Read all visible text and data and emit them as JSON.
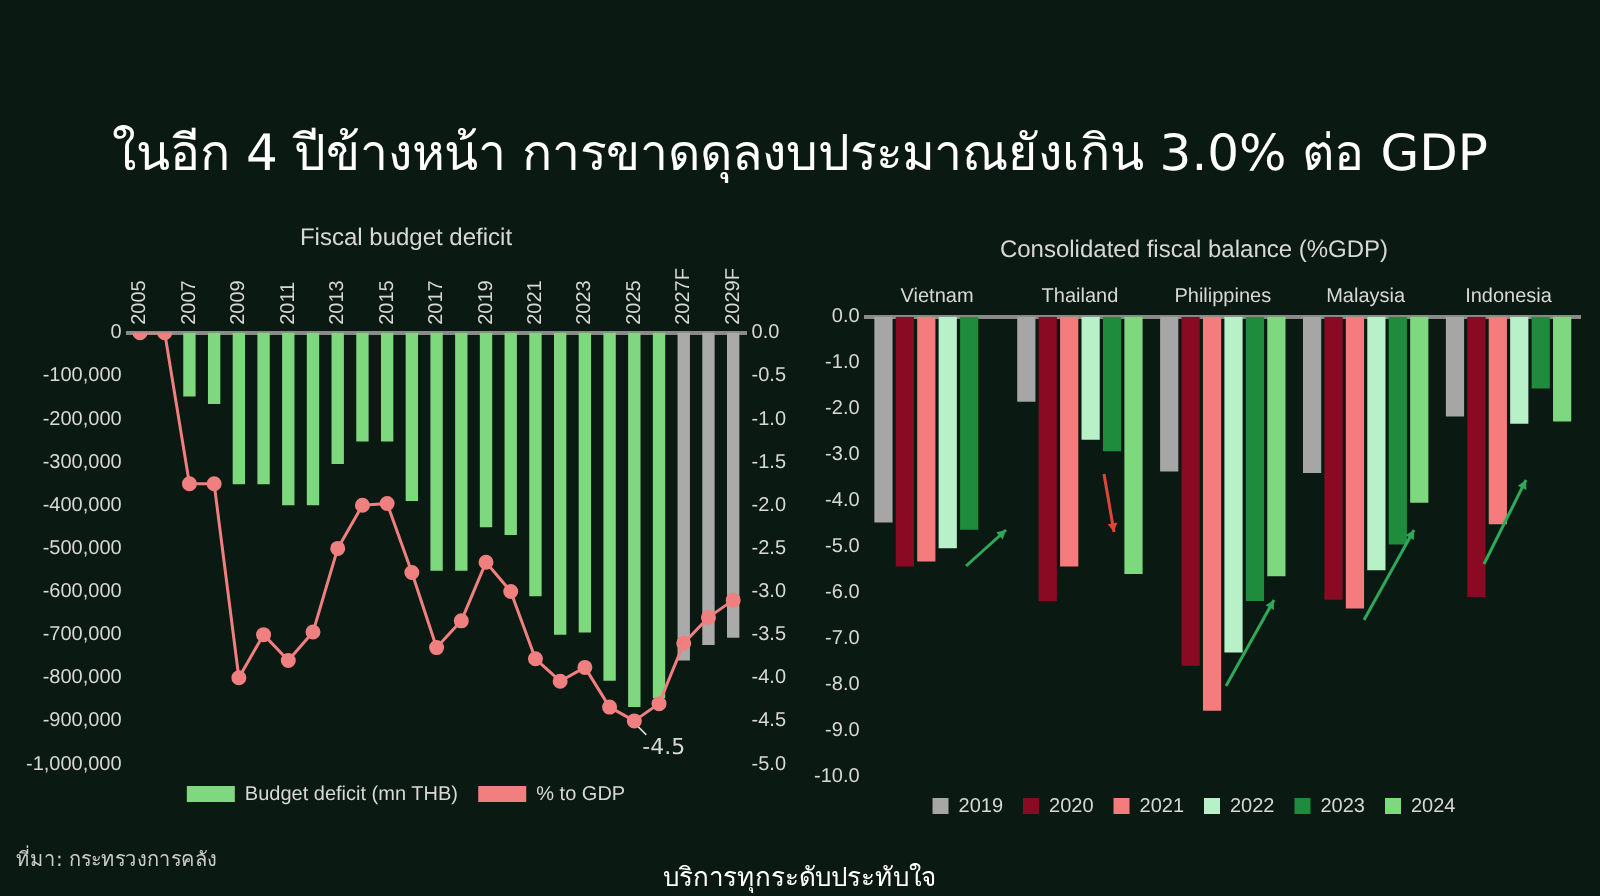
{
  "chart_data": [
    {
      "type": "other",
      "title": "ในอีก 4 ปีข้างหน้า การขาดดุลงบประมาณยังเกิน 3.0% ต่อ GDP",
      "annotations": [
        "ที่มา: กระทรวงการคลัง",
        "บริการทุกระดับประทับใจ"
      ]
    },
    {
      "type": "bar",
      "title": "Fiscal budget deficit",
      "categories": [
        "2005",
        null,
        "2007",
        null,
        "2009",
        null,
        "2011",
        null,
        "2013",
        null,
        "2015",
        null,
        "2017",
        null,
        "2019",
        null,
        "2021",
        null,
        "2023",
        null,
        "2025",
        null,
        "2027F",
        null,
        "2029F"
      ],
      "series": [
        {
          "name": "Budget deficit (mn THB)",
          "type": "bar",
          "color": "#7ed87e",
          "colors": [
            "#7ed87e",
            "#7ed87e",
            "#7ed87e",
            "#7ed87e",
            "#7ed87e",
            "#7ed87e",
            "#7ed87e",
            "#7ed87e",
            "#7ed87e",
            "#7ed87e",
            "#7ed87e",
            "#7ed87e",
            "#7ed87e",
            "#7ed87e",
            "#7ed87e",
            "#7ed87e",
            "#7ed87e",
            "#7ed87e",
            "#7ed87e",
            "#7ed87e",
            "#7ed87e",
            "#7ed87e",
            "#aaaaaa",
            "#aaaaaa",
            "#aaaaaa"
          ],
          "values": [
            null,
            null,
            -148000,
            -165000,
            -351000,
            -351000,
            -400000,
            -400000,
            -304000,
            -252000,
            -252000,
            -390000,
            -552000,
            -552000,
            -451000,
            -469000,
            -611000,
            -700000,
            -695000,
            -807000,
            -868000,
            -847000,
            -760000,
            -724000,
            -707000
          ]
        },
        {
          "name": "% to GDP",
          "type": "line",
          "axis": "y2",
          "color": "#f08080",
          "marker": "circle",
          "values": [
            0,
            0,
            -1.75,
            -1.75,
            -4.0,
            -3.5,
            -3.8,
            -3.47,
            -2.5,
            -2.0,
            -1.98,
            -2.78,
            -3.65,
            -3.34,
            -2.66,
            -3.0,
            -3.78,
            -4.04,
            -3.88,
            -4.34,
            -4.5,
            -4.3,
            -3.6,
            -3.3,
            -3.1
          ]
        }
      ],
      "ylim": [
        -1000000,
        0
      ],
      "yticks": [
        {
          "value": 0,
          "label": "0"
        },
        {
          "value": -100000,
          "label": "-100,000"
        },
        {
          "value": -200000,
          "label": "-200,000"
        },
        {
          "value": -300000,
          "label": "-300,000"
        },
        {
          "value": -400000,
          "label": "-400,000"
        },
        {
          "value": -500000,
          "label": "-500,000"
        },
        {
          "value": -600000,
          "label": "-600,000"
        },
        {
          "value": -700000,
          "label": "-700,000"
        },
        {
          "value": -800000,
          "label": "-800,000"
        },
        {
          "value": -900000,
          "label": "-900,000"
        },
        {
          "value": -1000000,
          "label": "-1,000,000"
        }
      ],
      "y2lim": [
        -5,
        0
      ],
      "y2ticks": [
        {
          "value": 0,
          "label": "0.0"
        },
        -0.5,
        {
          "value": -1,
          "label": "-1.0"
        },
        -1.5,
        {
          "value": -2,
          "label": "-2.0"
        },
        -2.5,
        {
          "value": -3,
          "label": "-3.0"
        },
        -3.5,
        {
          "value": -4,
          "label": "-4.0"
        },
        -4.5,
        {
          "value": -5,
          "label": "-5.0"
        }
      ],
      "annotations": [
        "-4.5"
      ],
      "grid": false,
      "legend": "bottom"
    },
    {
      "type": "bar",
      "title": "Consolidated fiscal balance (%GDP)",
      "categories": [
        "Vietnam",
        "Thailand",
        "Philippines",
        "Malaysia",
        "Indonesia"
      ],
      "series": [
        {
          "name": "2019",
          "color": "#a6a6a6",
          "values": [
            -4.48,
            -1.85,
            -3.37,
            -3.4,
            -2.17
          ]
        },
        {
          "name": "2020",
          "color": "#8b0a23",
          "values": [
            -5.44,
            -6.19,
            -7.6,
            -6.16,
            -6.1
          ]
        },
        {
          "name": "2021",
          "color": "#f47c7c",
          "values": [
            -5.33,
            -5.44,
            -8.58,
            -6.35,
            -4.52
          ]
        },
        {
          "name": "2022",
          "color": "#b8f0c8",
          "values": [
            -5.04,
            -2.68,
            -7.31,
            -5.52,
            -2.33
          ]
        },
        {
          "name": "2023",
          "color": "#1e8c3c",
          "values": [
            -4.64,
            -2.93,
            -6.19,
            -4.96,
            -1.56
          ]
        },
        {
          "name": "2024",
          "color": "#7ed87e",
          "values": [
            null,
            -5.6,
            -5.65,
            -4.05,
            -2.28
          ]
        }
      ],
      "ylim": [
        -10,
        0
      ],
      "yticks": [
        {
          "value": 0,
          "label": "0.0"
        },
        {
          "value": -1,
          "label": "-1.0"
        },
        {
          "value": -2,
          "label": "-2.0"
        },
        {
          "value": -3,
          "label": "-3.0"
        },
        {
          "value": -4,
          "label": "-4.0"
        },
        {
          "value": -5,
          "label": "-5.0"
        },
        {
          "value": -6,
          "label": "-6.0"
        },
        {
          "value": -7,
          "label": "-7.0"
        },
        {
          "value": -8,
          "label": "-8.0"
        },
        {
          "value": -9,
          "label": "-9.0"
        },
        {
          "value": -10,
          "label": "-10.0"
        }
      ],
      "grid": false,
      "legend": "bottom"
    }
  ]
}
